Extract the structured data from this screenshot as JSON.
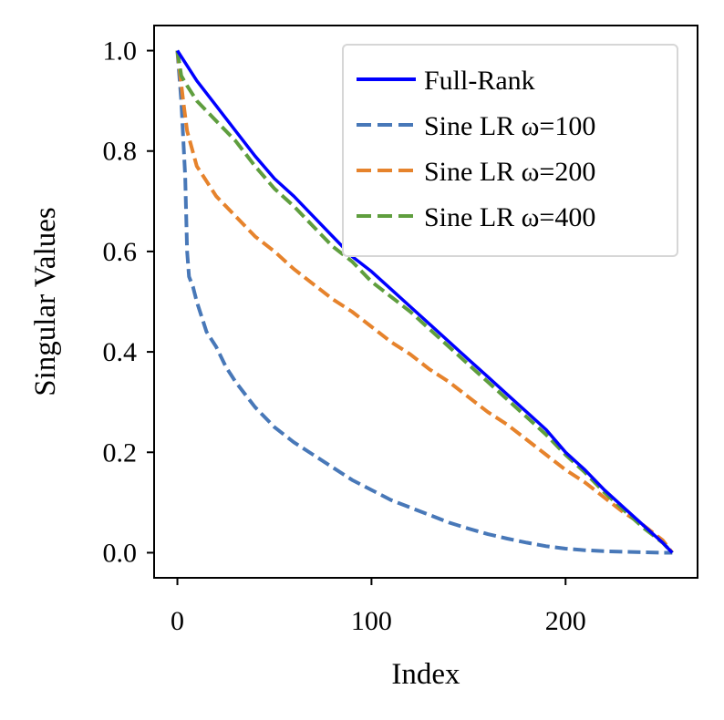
{
  "chart_data": {
    "type": "line",
    "title": "",
    "xlabel": "Index",
    "ylabel": "Singular Values",
    "xlim": [
      -12,
      268
    ],
    "ylim": [
      -0.05,
      1.05
    ],
    "xticks": [
      0,
      100,
      200
    ],
    "xtick_labels": [
      "0",
      "100",
      "200"
    ],
    "yticks": [
      0.0,
      0.2,
      0.4,
      0.6,
      0.8,
      1.0
    ],
    "ytick_labels": [
      "0.0",
      "0.2",
      "0.4",
      "0.6",
      "0.8",
      "1.0"
    ],
    "grid": false,
    "legend_position": "top-right",
    "series": [
      {
        "name": "Full-Rank",
        "color": "#0000ff",
        "style": "solid",
        "x": [
          0,
          5,
          10,
          20,
          30,
          40,
          50,
          60,
          70,
          80,
          90,
          100,
          110,
          120,
          130,
          140,
          150,
          160,
          170,
          180,
          190,
          200,
          210,
          220,
          230,
          240,
          250,
          255
        ],
        "y": [
          1.0,
          0.97,
          0.94,
          0.89,
          0.84,
          0.79,
          0.745,
          0.71,
          0.67,
          0.63,
          0.59,
          0.56,
          0.525,
          0.49,
          0.455,
          0.42,
          0.385,
          0.35,
          0.315,
          0.28,
          0.245,
          0.2,
          0.165,
          0.125,
          0.09,
          0.055,
          0.02,
          0.0
        ]
      },
      {
        "name": "Sine LR ω=100",
        "color": "#4878b8",
        "style": "dashed",
        "x": [
          0,
          2,
          4,
          5,
          6,
          8,
          10,
          15,
          20,
          25,
          30,
          40,
          50,
          60,
          70,
          80,
          90,
          100,
          110,
          120,
          130,
          140,
          150,
          160,
          170,
          180,
          190,
          200,
          210,
          220,
          230,
          240,
          250,
          255
        ],
        "y": [
          1.0,
          0.9,
          0.75,
          0.6,
          0.55,
          0.53,
          0.5,
          0.44,
          0.41,
          0.37,
          0.34,
          0.29,
          0.25,
          0.22,
          0.195,
          0.17,
          0.145,
          0.125,
          0.105,
          0.09,
          0.075,
          0.06,
          0.048,
          0.037,
          0.028,
          0.02,
          0.013,
          0.008,
          0.005,
          0.003,
          0.002,
          0.001,
          0.0,
          0.0
        ]
      },
      {
        "name": "Sine LR ω=200",
        "color": "#e6832c",
        "style": "dashed",
        "x": [
          0,
          3,
          5,
          10,
          15,
          20,
          30,
          40,
          50,
          60,
          70,
          80,
          90,
          100,
          110,
          120,
          130,
          140,
          150,
          160,
          170,
          180,
          190,
          200,
          210,
          220,
          230,
          240,
          250,
          255
        ],
        "y": [
          1.0,
          0.9,
          0.84,
          0.77,
          0.74,
          0.71,
          0.67,
          0.63,
          0.6,
          0.565,
          0.535,
          0.505,
          0.48,
          0.45,
          0.42,
          0.395,
          0.365,
          0.34,
          0.31,
          0.28,
          0.255,
          0.225,
          0.195,
          0.165,
          0.14,
          0.11,
          0.08,
          0.055,
          0.025,
          0.0
        ]
      },
      {
        "name": "Sine LR ω=400",
        "color": "#5f9e3e",
        "style": "dashed",
        "x": [
          0,
          2,
          5,
          10,
          20,
          30,
          40,
          50,
          60,
          70,
          80,
          90,
          100,
          110,
          120,
          130,
          140,
          150,
          160,
          170,
          180,
          190,
          200,
          210,
          220,
          230,
          240,
          250,
          255
        ],
        "y": [
          1.0,
          0.95,
          0.93,
          0.9,
          0.86,
          0.82,
          0.77,
          0.725,
          0.69,
          0.65,
          0.61,
          0.58,
          0.54,
          0.51,
          0.48,
          0.445,
          0.41,
          0.375,
          0.34,
          0.305,
          0.27,
          0.235,
          0.195,
          0.16,
          0.12,
          0.085,
          0.05,
          0.02,
          0.0
        ]
      }
    ]
  }
}
